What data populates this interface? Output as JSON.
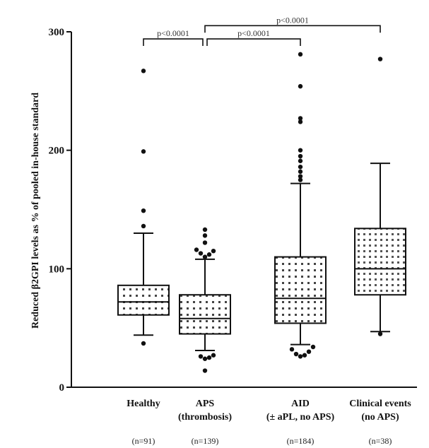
{
  "chart_data": {
    "type": "box",
    "ylabel": "Reduced β2GPI levels as % of pooled in-house standard",
    "ylim": [
      0,
      300
    ],
    "yticks": [
      0,
      100,
      200,
      300
    ],
    "groups": [
      {
        "label_line1": "Healthy",
        "label_line2": "",
        "n_label": "(n=91)",
        "whisker_low": 44,
        "q1": 61,
        "median": 72,
        "q3": 86,
        "whisker_high": 130,
        "outliers": [
          37,
          149,
          136,
          199,
          267
        ]
      },
      {
        "label_line1": "APS",
        "label_line2": "(thrombosis)",
        "n_label": "(n=139)",
        "whisker_low": 31,
        "q1": 45,
        "median": 58,
        "q3": 78,
        "whisker_high": 108,
        "outliers": [
          14,
          24,
          25,
          26,
          27,
          110,
          112,
          113,
          115,
          116,
          122,
          128,
          133
        ]
      },
      {
        "label_line1": "AID",
        "label_line2": "(± aPL, no APS)",
        "n_label": "(n=184)",
        "whisker_low": 36,
        "q1": 54,
        "median": 75,
        "q3": 110,
        "whisker_high": 172,
        "outliers": [
          26,
          27,
          28,
          30,
          32,
          34,
          175,
          178,
          182,
          186,
          191,
          195,
          200,
          224,
          227,
          254,
          281
        ]
      },
      {
        "label_line1": "Clinical events",
        "label_line2": "(no APS)",
        "n_label": "(n=38)",
        "whisker_low": 47,
        "q1": 78,
        "median": 100,
        "q3": 134,
        "whisker_high": 189,
        "outliers": [
          45,
          277
        ]
      }
    ],
    "significance": [
      {
        "from": 0,
        "to": 1,
        "label": "p<0.0001",
        "level": 294
      },
      {
        "from": 1,
        "to": 2,
        "label": "p<0.0001",
        "level": 294
      },
      {
        "from": 1,
        "to": 3,
        "label": "p<0.0001",
        "level": 307
      }
    ]
  }
}
